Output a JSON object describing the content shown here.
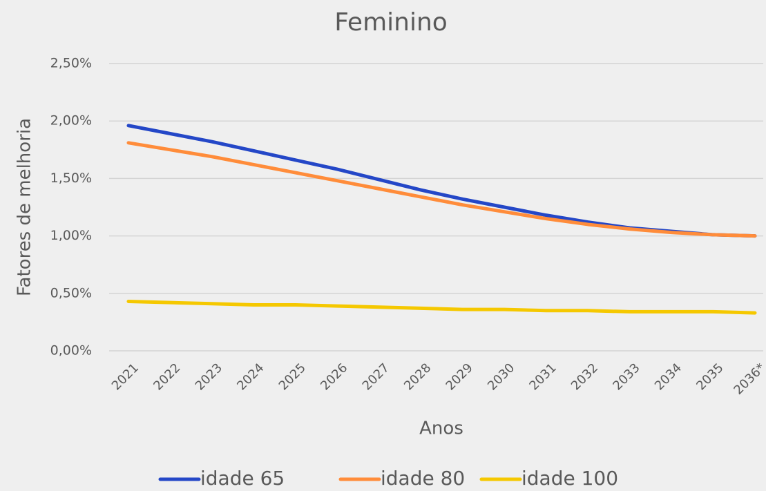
{
  "chart_data": {
    "type": "line",
    "title": "Feminino",
    "x_label": "Anos",
    "y_label": "Fatores de melhoria",
    "categories": [
      "2021",
      "2022",
      "2023",
      "2024",
      "2025",
      "2026",
      "2027",
      "2028",
      "2029",
      "2030",
      "2031",
      "2032",
      "2033",
      "2034",
      "2035",
      "2036*"
    ],
    "series": [
      {
        "name": "idade 65",
        "color": "#2447c7",
        "values": [
          1.96,
          1.89,
          1.82,
          1.74,
          1.66,
          1.58,
          1.49,
          1.4,
          1.32,
          1.25,
          1.18,
          1.12,
          1.07,
          1.04,
          1.01,
          1.0
        ]
      },
      {
        "name": "idade 80",
        "color": "#ff8c3a",
        "values": [
          1.81,
          1.75,
          1.69,
          1.62,
          1.55,
          1.48,
          1.41,
          1.34,
          1.27,
          1.21,
          1.15,
          1.1,
          1.06,
          1.03,
          1.01,
          1.0
        ]
      },
      {
        "name": "idade 100",
        "color": "#f5c800",
        "values": [
          0.43,
          0.42,
          0.41,
          0.4,
          0.4,
          0.39,
          0.38,
          0.37,
          0.36,
          0.36,
          0.35,
          0.35,
          0.34,
          0.34,
          0.34,
          0.33
        ]
      }
    ],
    "ylim": [
      0,
      2.5
    ],
    "yticks": [
      {
        "value": 0,
        "label": "0,00%"
      },
      {
        "value": 0.5,
        "label": "0,50%"
      },
      {
        "value": 1,
        "label": "1,00%"
      },
      {
        "value": 1.5,
        "label": "1,50%"
      },
      {
        "value": 2,
        "label": "2,00%"
      },
      {
        "value": 2.5,
        "label": "2,50%"
      }
    ],
    "grid": true,
    "legend": "bottom"
  }
}
